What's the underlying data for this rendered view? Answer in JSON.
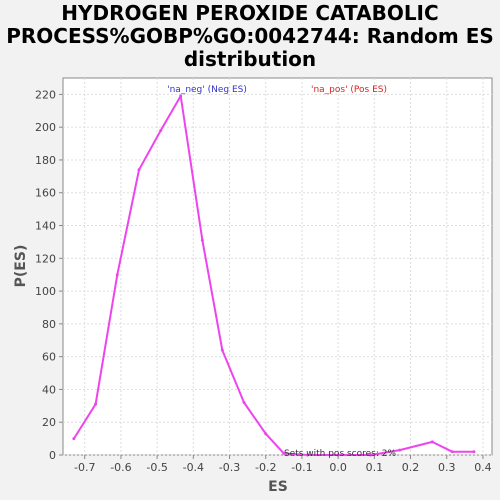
{
  "chart_data": {
    "type": "line",
    "title": [
      "HYDROGEN PEROXIDE CATABOLIC",
      "PROCESS%GOBP%GO:0042744: Random ES",
      "distribution"
    ],
    "xlabel": "ES",
    "ylabel": "P(ES)",
    "xlim": [
      -0.76,
      0.425
    ],
    "ylim": [
      0,
      230
    ],
    "x_ticks": [
      -0.7,
      -0.6,
      -0.5,
      -0.4,
      -0.3,
      -0.2,
      -0.1,
      0.0,
      0.1,
      0.2,
      0.3,
      0.4
    ],
    "x_tick_labels": [
      "-0.7",
      "-0.6",
      "-0.5",
      "-0.4",
      "-0.3",
      "-0.2",
      "-0.1",
      "0.0",
      "0.1",
      "0.2",
      "0.3",
      "0.4"
    ],
    "y_ticks": [
      0,
      20,
      40,
      60,
      80,
      100,
      120,
      140,
      160,
      180,
      200,
      220
    ],
    "y_tick_labels": [
      "0",
      "20",
      "40",
      "60",
      "80",
      "100",
      "120",
      "140",
      "160",
      "180",
      "200",
      "220"
    ],
    "grid": true,
    "series": [
      {
        "color": "#ee44ee",
        "x": [
          -0.73,
          -0.67,
          -0.61,
          -0.55,
          -0.49,
          -0.435,
          -0.375,
          -0.32,
          -0.26,
          -0.2,
          -0.15,
          -0.085,
          0.0,
          0.09,
          0.17,
          0.26,
          0.315,
          0.375
        ],
        "y": [
          10,
          31,
          110,
          174,
          198,
          219,
          131,
          64,
          32,
          13,
          1,
          0,
          0,
          0,
          3,
          8,
          2,
          2
        ]
      }
    ],
    "legend": [
      {
        "label": "'na_neg' (Neg ES)",
        "color": "#3333cc"
      },
      {
        "label": "'na_pos' (Pos ES)",
        "color": "#dd2222"
      }
    ],
    "annotation": "Sets with pos scores: 2%"
  }
}
